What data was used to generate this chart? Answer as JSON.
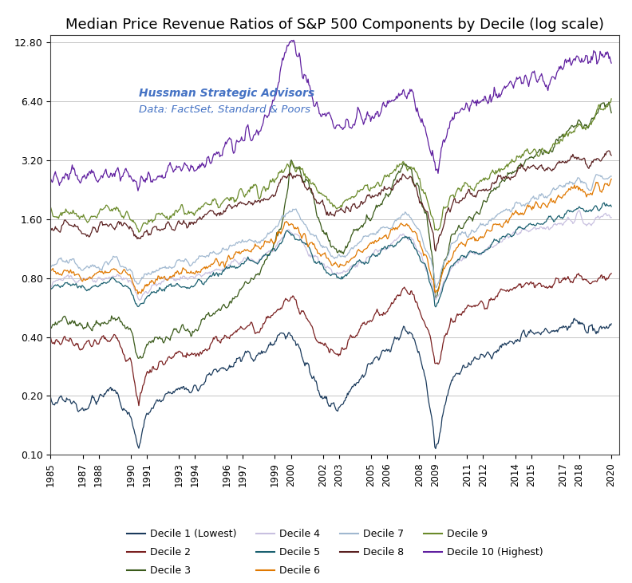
{
  "title": "Median Price Revenue Ratios of S&P 500 Components by Decile (log scale)",
  "watermark_line1": "Hussman Strategic Advisors",
  "watermark_line2": "Data: FactSet, Standard & Poors",
  "xlim": [
    1985.0,
    2020.5
  ],
  "ylim_log": [
    0.1,
    14.0
  ],
  "yticks": [
    0.1,
    0.2,
    0.4,
    0.8,
    1.6,
    3.2,
    6.4,
    12.8
  ],
  "ytick_labels": [
    "0.10",
    "0.20",
    "0.40",
    "0.80",
    "1.60",
    "3.20",
    "6.40",
    "12.80"
  ],
  "xtick_labels": [
    1985,
    1987,
    1988,
    1990,
    1991,
    1993,
    1994,
    1996,
    1997,
    1999,
    2000,
    2002,
    2003,
    2005,
    2006,
    2008,
    2009,
    2011,
    2012,
    2014,
    2015,
    2017,
    2018,
    2020
  ],
  "decile_colors": [
    "#1a3a5c",
    "#7a2020",
    "#3a5a1a",
    "#c8c0e0",
    "#1a6070",
    "#e07800",
    "#a0b8d0",
    "#5a2020",
    "#6a8a2a",
    "#6020a0"
  ],
  "decile_labels": [
    "Decile 1 (Lowest)",
    "Decile 2",
    "Decile 3",
    "Decile 4",
    "Decile 5",
    "Decile 6",
    "Decile 7",
    "Decile 8",
    "Decile 9",
    "Decile 10 (Highest)"
  ],
  "background_color": "#ffffff",
  "grid_color": "#bbbbbb",
  "title_fontsize": 13,
  "watermark_fontsize": 10,
  "legend_fontsize": 9
}
